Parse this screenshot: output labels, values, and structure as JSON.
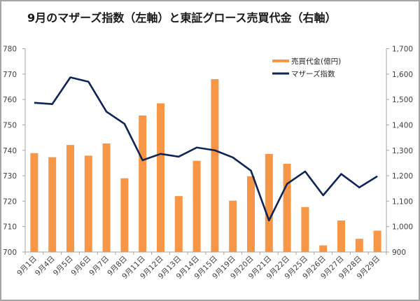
{
  "chart_data": {
    "type": "bar+line",
    "title": "9月のマザーズ指数（左軸）と東証グロース売買代金（右軸）",
    "xlabel": "",
    "categories": [
      "9月1日",
      "9月4日",
      "9月5日",
      "9月6日",
      "9月7日",
      "9月8日",
      "9月11日",
      "9月12日",
      "9月13日",
      "9月14日",
      "9月15日",
      "9月19日",
      "9月20日",
      "9月21日",
      "9月22日",
      "9月25日",
      "9月26日",
      "9月27日",
      "9月28日",
      "9月29日"
    ],
    "series": [
      {
        "name": "売買代金(億円)",
        "type": "bar",
        "axis": "right",
        "color": "#f79646",
        "values": [
          1289,
          1273,
          1321,
          1279,
          1327,
          1190,
          1437,
          1485,
          1120,
          1259,
          1580,
          1102,
          1198,
          1286,
          1247,
          1077,
          926,
          1024,
          952,
          984
        ]
      },
      {
        "name": "マザーズ指数",
        "type": "line",
        "axis": "left",
        "color": "#0f2557",
        "values": [
          758.7,
          758.2,
          768.7,
          767.0,
          755.2,
          750.4,
          736.1,
          738.6,
          737.5,
          741.1,
          740.0,
          737.2,
          732.0,
          712.4,
          726.8,
          731.7,
          722.3,
          730.7,
          725.4,
          729.8
        ]
      }
    ],
    "left_axis": {
      "ylim": [
        700,
        780
      ],
      "ticks": [
        "700",
        "710",
        "720",
        "730",
        "740",
        "750",
        "760",
        "770",
        "780"
      ]
    },
    "right_axis": {
      "ylim": [
        900,
        1700
      ],
      "ticks": [
        "900",
        "1,000",
        "1,100",
        "1,200",
        "1,300",
        "1,400",
        "1,500",
        "1,600",
        "1,700"
      ]
    },
    "grid": false,
    "legend": {
      "placement": "top-right",
      "entries": [
        "売買代金(億円)",
        "マザーズ指数"
      ]
    }
  }
}
